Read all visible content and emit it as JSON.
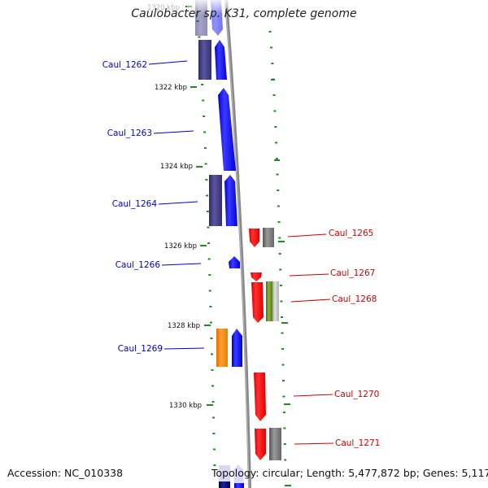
{
  "header": {
    "title": "Caulobacter sp. K31, complete genome"
  },
  "footer": {
    "accession": "Accession: NC_010338",
    "topology": "Topology: circular; Length: 5,477,872 bp; Genes: 5,117"
  },
  "scale_labels": [
    "1320 kbp",
    "1322 kbp",
    "1324 kbp",
    "1326 kbp",
    "1328 kbp",
    "1330 kbp"
  ],
  "genes_left": [
    "Caul_1262",
    "Caul_1263",
    "Caul_1264",
    "Caul_1266",
    "Caul_1269"
  ],
  "genes_right": [
    "Caul_1265",
    "Caul_1267",
    "Caul_1268",
    "Caul_1270",
    "Caul_1271"
  ],
  "colors": {
    "forward_strand": "#0000ff",
    "reverse_strand": "#ff0000",
    "cog_purple": "#3c3878",
    "cog_orange": "#ff8c00",
    "cog_grey": "#707070",
    "cog_olive": "#6b8e23",
    "label_left": "#0000cc",
    "label_right": "#cc0000",
    "tick": "#228b22",
    "backbone": "#888888"
  }
}
